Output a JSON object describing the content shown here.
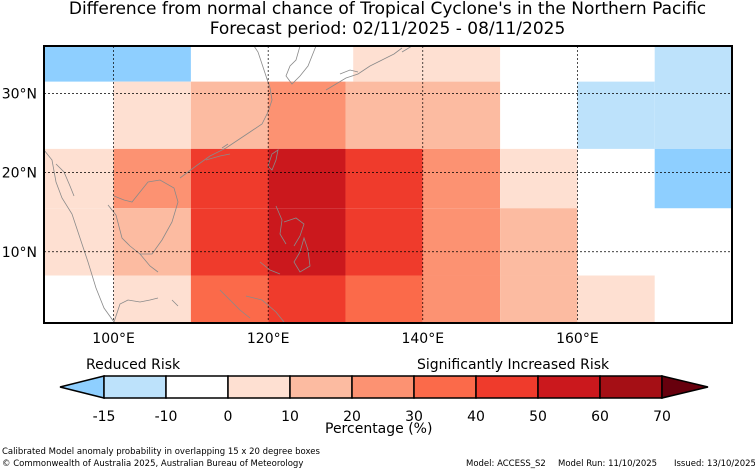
{
  "title": {
    "line1": "Difference from normal chance of Tropical Cyclone's in the Northern Pacific",
    "line2": "Forecast period: 02/11/2025 - 08/11/2025"
  },
  "map": {
    "lon_range": [
      91,
      180
    ],
    "lat_range": [
      1,
      36
    ],
    "x_ticks": [
      {
        "value": 100,
        "label": "100°E"
      },
      {
        "value": 120,
        "label": "120°E"
      },
      {
        "value": 140,
        "label": "140°E"
      },
      {
        "value": 160,
        "label": "160°E"
      }
    ],
    "y_ticks": [
      {
        "value": 30,
        "label": "30°N"
      },
      {
        "value": 20,
        "label": "20°N"
      },
      {
        "value": 10,
        "label": "10°N"
      }
    ],
    "cells": [
      {
        "lon0": 91,
        "lon1": 110,
        "lat0": 31.5,
        "lat1": 36,
        "cat": 0
      },
      {
        "lon0": 131,
        "lon1": 150,
        "lat0": 31.5,
        "lat1": 36,
        "cat": 3
      },
      {
        "lon0": 170,
        "lon1": 180,
        "lat0": 23,
        "lat1": 36,
        "cat": 1
      },
      {
        "lon0": 100,
        "lon1": 110,
        "lat0": 23,
        "lat1": 31.5,
        "cat": 3
      },
      {
        "lon0": 110,
        "lon1": 120,
        "lat0": 23,
        "lat1": 31.5,
        "cat": 4
      },
      {
        "lon0": 120,
        "lon1": 130,
        "lat0": 23,
        "lat1": 31.5,
        "cat": 5
      },
      {
        "lon0": 130,
        "lon1": 150,
        "lat0": 23,
        "lat1": 31.5,
        "cat": 4
      },
      {
        "lon0": 160,
        "lon1": 170,
        "lat0": 23,
        "lat1": 31.5,
        "cat": 1
      },
      {
        "lon0": 91,
        "lon1": 100,
        "lat0": 15.5,
        "lat1": 23,
        "cat": 3
      },
      {
        "lon0": 100,
        "lon1": 110,
        "lat0": 15.5,
        "lat1": 23,
        "cat": 5
      },
      {
        "lon0": 110,
        "lon1": 120,
        "lat0": 15.5,
        "lat1": 23,
        "cat": 7
      },
      {
        "lon0": 120,
        "lon1": 130,
        "lat0": 15.5,
        "lat1": 23,
        "cat": 8
      },
      {
        "lon0": 130,
        "lon1": 140,
        "lat0": 15.5,
        "lat1": 23,
        "cat": 7
      },
      {
        "lon0": 140,
        "lon1": 150,
        "lat0": 15.5,
        "lat1": 23,
        "cat": 5
      },
      {
        "lon0": 150,
        "lon1": 160,
        "lat0": 15.5,
        "lat1": 23,
        "cat": 3
      },
      {
        "lon0": 170,
        "lon1": 180,
        "lat0": 15.5,
        "lat1": 23,
        "cat": 0
      },
      {
        "lon0": 91,
        "lon1": 100,
        "lat0": 7,
        "lat1": 15.5,
        "cat": 3
      },
      {
        "lon0": 100,
        "lon1": 110,
        "lat0": 7,
        "lat1": 15.5,
        "cat": 4
      },
      {
        "lon0": 110,
        "lon1": 120,
        "lat0": 7,
        "lat1": 15.5,
        "cat": 7
      },
      {
        "lon0": 120,
        "lon1": 130,
        "lat0": 7,
        "lat1": 15.5,
        "cat": 8
      },
      {
        "lon0": 130,
        "lon1": 140,
        "lat0": 7,
        "lat1": 15.5,
        "cat": 7
      },
      {
        "lon0": 140,
        "lon1": 150,
        "lat0": 7,
        "lat1": 15.5,
        "cat": 5
      },
      {
        "lon0": 150,
        "lon1": 160,
        "lat0": 7,
        "lat1": 15.5,
        "cat": 4
      },
      {
        "lon0": 100,
        "lon1": 110,
        "lat0": 1,
        "lat1": 7,
        "cat": 3
      },
      {
        "lon0": 110,
        "lon1": 120,
        "lat0": 1,
        "lat1": 7,
        "cat": 6
      },
      {
        "lon0": 120,
        "lon1": 130,
        "lat0": 1,
        "lat1": 7,
        "cat": 7
      },
      {
        "lon0": 130,
        "lon1": 140,
        "lat0": 1,
        "lat1": 7,
        "cat": 6
      },
      {
        "lon0": 140,
        "lon1": 150,
        "lat0": 1,
        "lat1": 7,
        "cat": 5
      },
      {
        "lon0": 150,
        "lon1": 160,
        "lat0": 1,
        "lat1": 7,
        "cat": 4
      },
      {
        "lon0": 160,
        "lon1": 170,
        "lat0": 1,
        "lat1": 7,
        "cat": 3
      }
    ]
  },
  "colorbar": {
    "ticks": [
      "-15",
      "-10",
      "0",
      "10",
      "20",
      "30",
      "40",
      "50",
      "60",
      "70"
    ],
    "colors": [
      "#8ecfff",
      "#bde2fb",
      "#ffffff",
      "#fee0d2",
      "#fcbba1",
      "#fc9272",
      "#fb6a4a",
      "#ef3b2c",
      "#cb181d",
      "#a50f15",
      "#67000d"
    ],
    "label": "Percentage (%)",
    "reduced_label": "Reduced Risk",
    "increased_label": "Significantly Increased Risk"
  },
  "footer": {
    "note": "Calibrated Model anomaly probability in overlapping 15 x 20 degree boxes",
    "copyright": "© Commonwealth of Australia 2025, Australian Bureau of Meteorology",
    "model": "Model: ACCESS_S2",
    "run": "Model Run: 11/10/2025",
    "issued": "Issued: 13/10/2025"
  }
}
